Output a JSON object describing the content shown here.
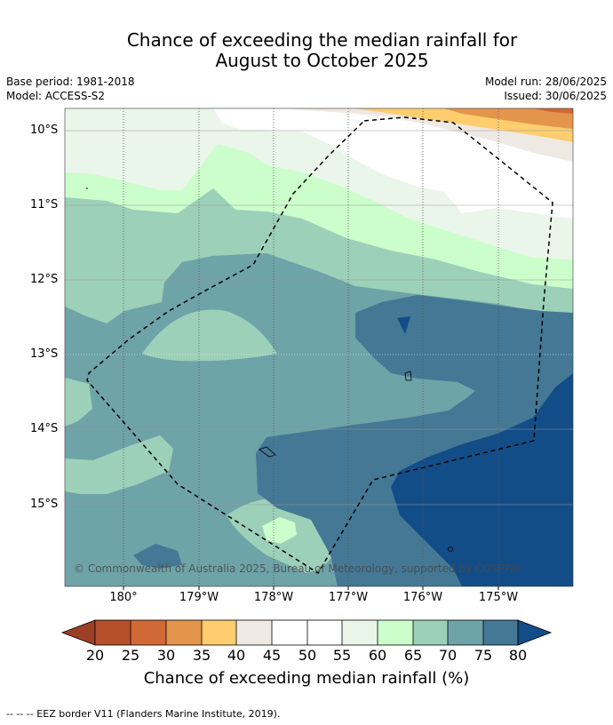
{
  "title": {
    "line1": "Chance of exceeding the median rainfall for",
    "line2": "August to October 2025"
  },
  "meta": {
    "base_period": "Base period: 1981-2018",
    "model": "Model: ACCESS-S2",
    "model_run": "Model run: 28/06/2025",
    "issued": "Issued: 30/06/2025"
  },
  "map": {
    "latitude_labels": [
      "10°S",
      "11°S",
      "12°S",
      "13°S",
      "14°S",
      "15°S"
    ],
    "longitude_labels": [
      "180°",
      "179°W",
      "178°W",
      "177°W",
      "176°W",
      "175°W"
    ],
    "copyright": "© Commonwealth of Australia 2025, Bureau of Meteorology, supported by COSPPac",
    "eez_border": "dashed black"
  },
  "colorbar": {
    "title": "Chance of exceeding median rainfall (%)",
    "tick_labels": [
      "20",
      "25",
      "30",
      "35",
      "40",
      "45",
      "50",
      "55",
      "60",
      "65",
      "70",
      "75",
      "80"
    ],
    "colors": [
      "#9c3f26",
      "#b5502b",
      "#d06935",
      "#e3954c",
      "#fdcd6e",
      "#efe9e4",
      "#ffffff",
      "#ffffff",
      "#eaf6ea",
      "#cbfecb",
      "#9dd0b9",
      "#6ea3a8",
      "#447894",
      "#134d88"
    ]
  },
  "footnote": "--  --  -- EEZ border V11 (Flanders Marine Institute, 2019)."
}
